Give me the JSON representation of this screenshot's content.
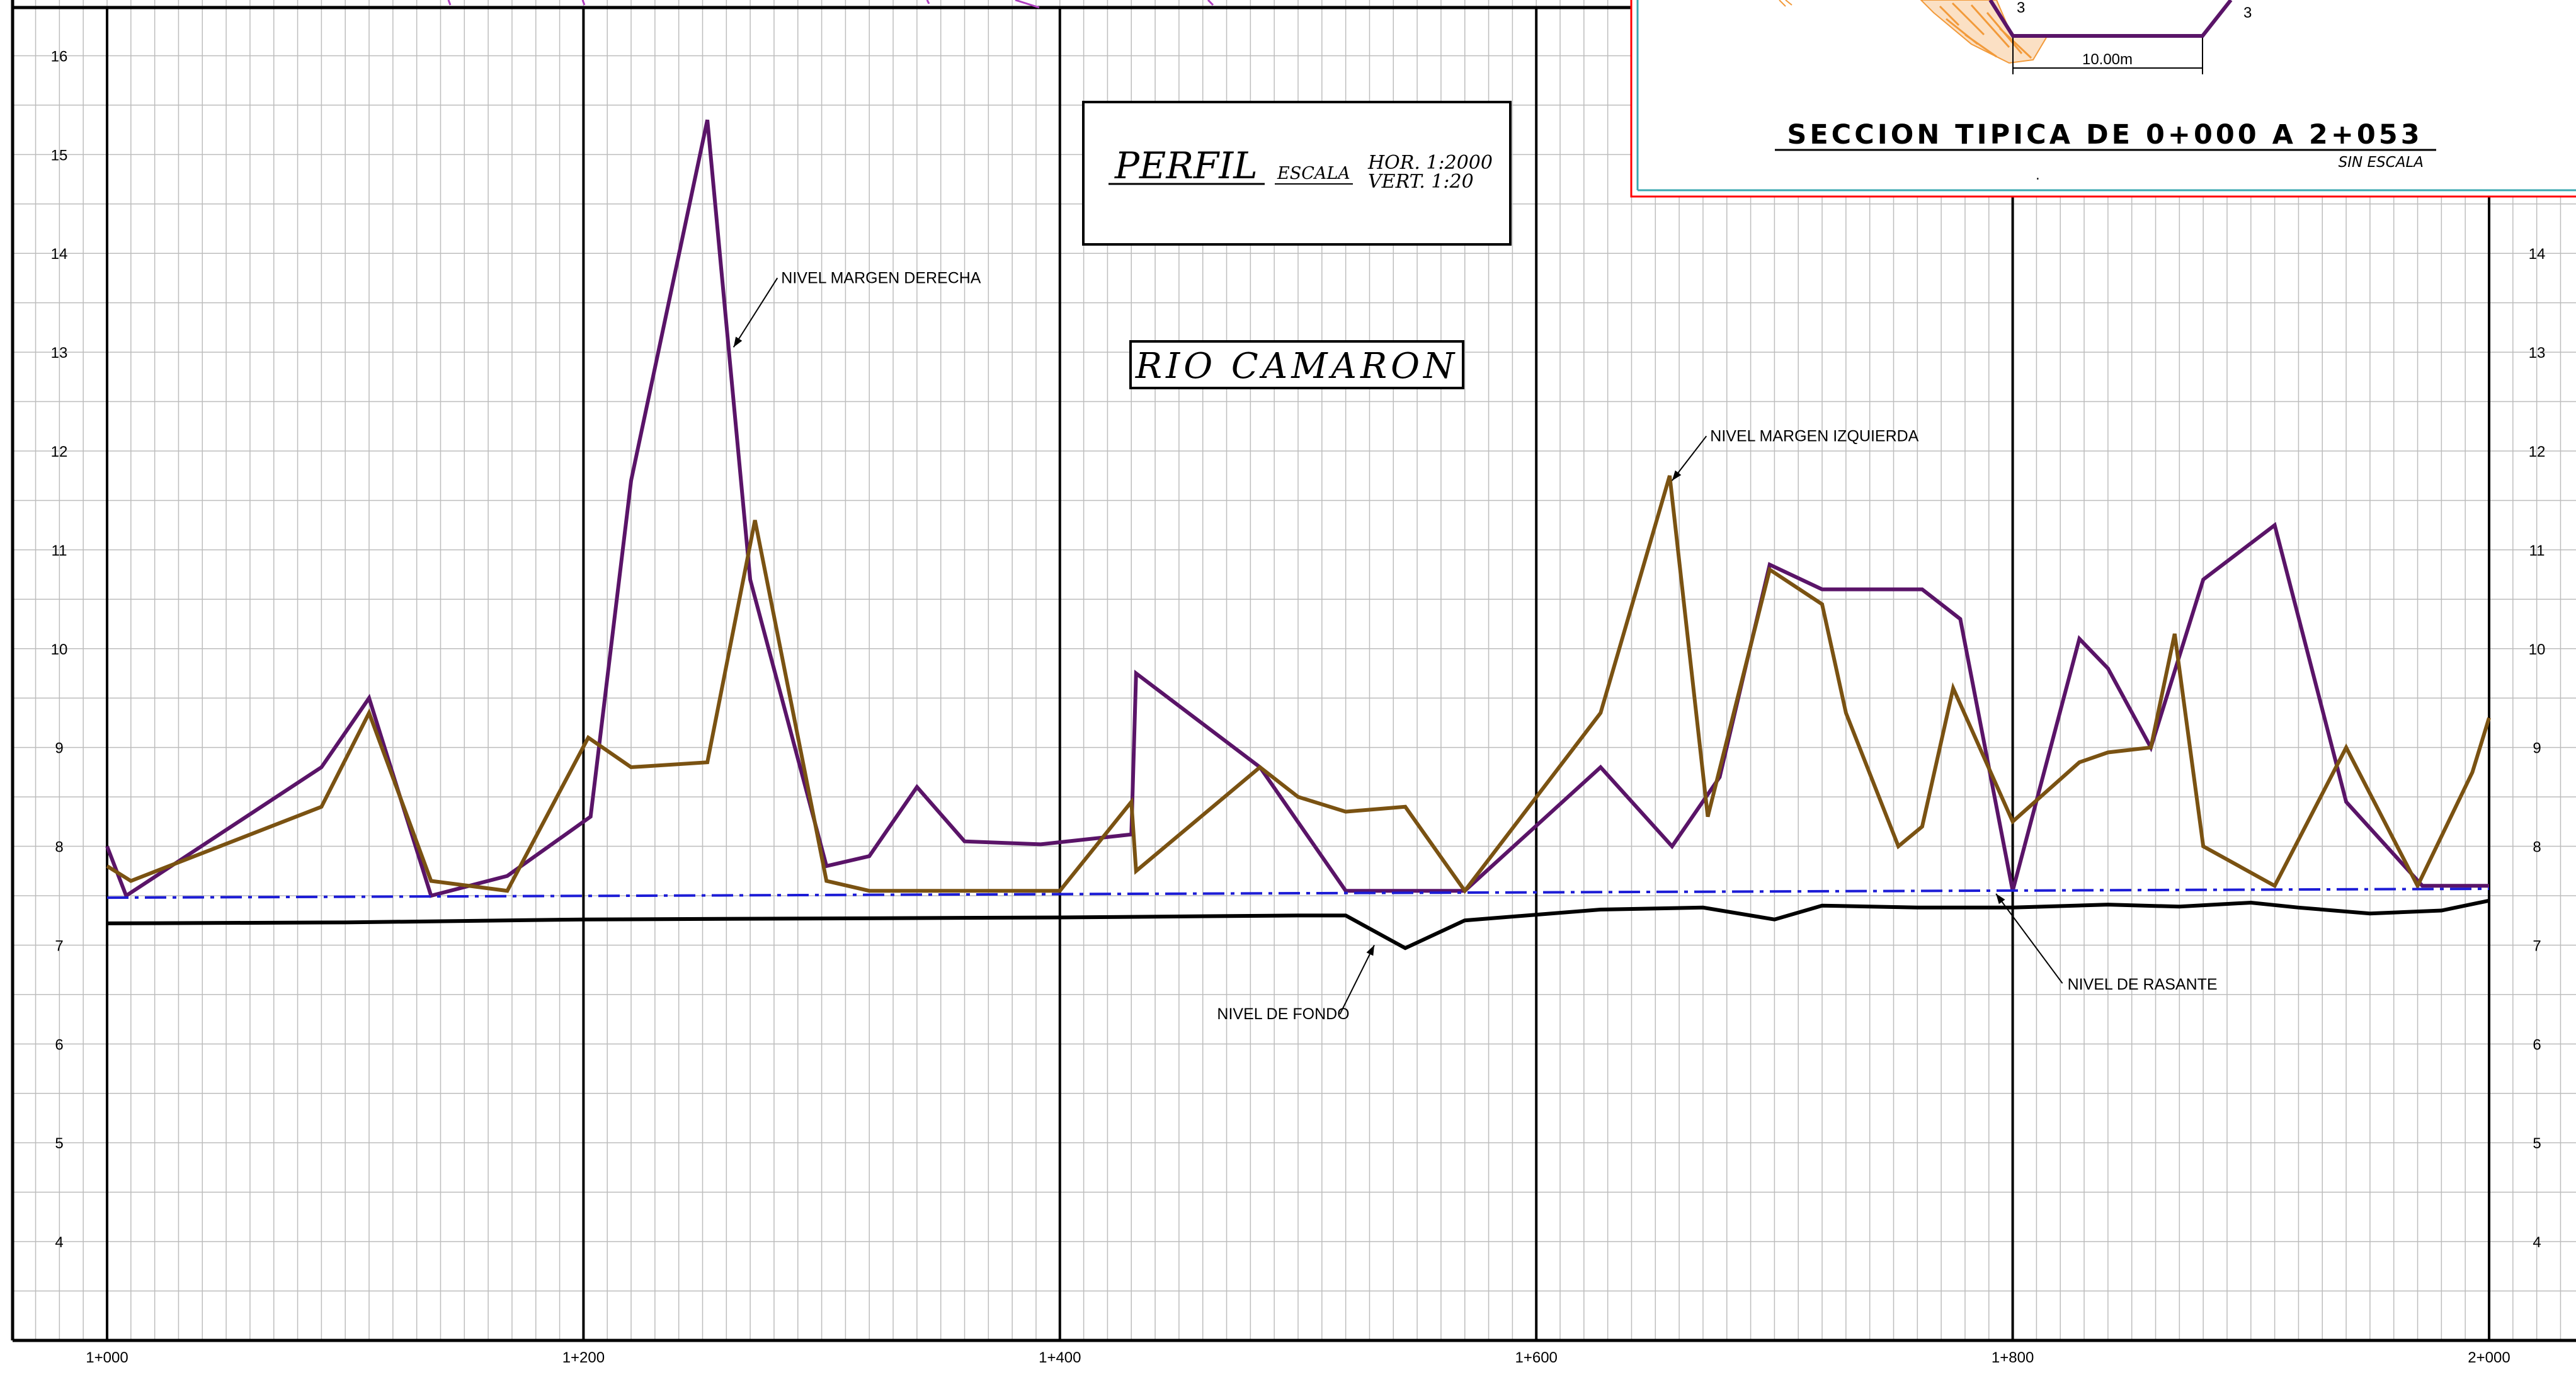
{
  "chart_data": {
    "type": "line",
    "title": "PERFIL",
    "scale": {
      "label": "ESCALA",
      "horizontal": "HOR. 1:2000",
      "vertical": "VERT. 1:20"
    },
    "river_name": "RIO CAMARON",
    "xlim": [
      1000,
      2000
    ],
    "ylim": [
      3,
      16.5
    ],
    "y_ticks": [
      4,
      5,
      6,
      7,
      8,
      9,
      10,
      11,
      12,
      13,
      14,
      15,
      16
    ],
    "y_ticks_right": [
      4,
      5,
      6,
      7,
      8,
      9,
      10,
      11,
      12,
      13,
      14
    ],
    "x_ticks": [
      {
        "value": 1000,
        "label": "1+000"
      },
      {
        "value": 1200,
        "label": "1+200"
      },
      {
        "value": 1400,
        "label": "1+400"
      },
      {
        "value": 1600,
        "label": "1+600"
      },
      {
        "value": 1800,
        "label": "1+800"
      },
      {
        "value": 2000,
        "label": "2+000"
      }
    ],
    "grid": true,
    "series": [
      {
        "name": "NIVEL MARGEN DERECHA",
        "color": "#5a1468",
        "style": "solid",
        "x": [
          1000,
          1008,
          1090,
          1110,
          1136,
          1168,
          1203,
          1220,
          1252,
          1270,
          1302,
          1320,
          1340,
          1360,
          1392,
          1430,
          1432,
          1484,
          1520,
          1570,
          1627,
          1657,
          1677,
          1698,
          1720,
          1762,
          1778,
          1800,
          1828,
          1840,
          1858,
          1880,
          1910,
          1940,
          1972,
          2000
        ],
        "y": [
          8.0,
          7.5,
          8.8,
          9.5,
          7.5,
          7.7,
          8.3,
          11.7,
          15.35,
          10.7,
          7.8,
          7.9,
          8.6,
          8.05,
          8.02,
          8.12,
          9.75,
          8.8,
          7.55,
          7.55,
          8.8,
          8.0,
          8.7,
          10.85,
          10.6,
          10.6,
          10.3,
          7.55,
          10.1,
          9.8,
          9.0,
          10.7,
          11.25,
          8.45,
          7.6,
          7.6
        ]
      },
      {
        "name": "NIVEL MARGEN IZQUIERDA",
        "color": "#7a5212",
        "style": "solid",
        "x": [
          1000,
          1010,
          1090,
          1110,
          1136,
          1168,
          1202,
          1220,
          1252,
          1272,
          1302,
          1320,
          1400,
          1430,
          1432,
          1484,
          1500,
          1520,
          1545,
          1570,
          1627,
          1656,
          1672,
          1698,
          1720,
          1730,
          1752,
          1762,
          1775,
          1800,
          1828,
          1840,
          1858,
          1868,
          1880,
          1910,
          1940,
          1970,
          1993,
          2000
        ],
        "y": [
          7.8,
          7.65,
          8.4,
          9.35,
          7.65,
          7.55,
          9.1,
          8.8,
          8.85,
          11.3,
          7.65,
          7.55,
          7.55,
          8.45,
          7.75,
          8.8,
          8.5,
          8.35,
          8.4,
          7.55,
          9.35,
          11.75,
          8.3,
          10.8,
          10.45,
          9.35,
          8.0,
          8.2,
          9.6,
          8.25,
          8.85,
          8.95,
          9.0,
          10.15,
          8.0,
          7.6,
          9.0,
          7.6,
          8.75,
          9.3
        ]
      },
      {
        "name": "NIVEL DE FONDO",
        "color": "#000000",
        "style": "solid",
        "x": [
          1000,
          1100,
          1200,
          1300,
          1400,
          1500,
          1520,
          1545,
          1570,
          1627,
          1670,
          1700,
          1720,
          1760,
          1800,
          1840,
          1870,
          1900,
          1920,
          1950,
          1980,
          2000
        ],
        "y": [
          7.22,
          7.23,
          7.26,
          7.27,
          7.28,
          7.3,
          7.3,
          6.97,
          7.25,
          7.36,
          7.38,
          7.26,
          7.4,
          7.38,
          7.38,
          7.41,
          7.39,
          7.43,
          7.38,
          7.32,
          7.35,
          7.45
        ]
      },
      {
        "name": "NIVEL DE RASANTE",
        "color": "#1c1cd6",
        "style": "dashdot",
        "x": [
          1000,
          2000
        ],
        "y": [
          7.48,
          7.57
        ]
      }
    ],
    "annotations": [
      {
        "text": "NIVEL MARGEN DERECHA",
        "x": 1283,
        "y": 13.7,
        "target_x": 1263,
        "target_y": 13.05
      },
      {
        "text": "NIVEL MARGEN IZQUIERDA",
        "x": 1673,
        "y": 12.1,
        "target_x": 1657,
        "target_y": 11.7
      },
      {
        "text": "NIVEL DE FONDO",
        "x": 1466,
        "y": 6.25,
        "target_x": 1532,
        "target_y": 7.0
      },
      {
        "text": "NIVEL DE RASANTE",
        "x": 1823,
        "y": 6.55,
        "target_x": 1793,
        "target_y": 7.52
      }
    ]
  },
  "typical_section": {
    "title": "SECCION TIPICA DE 0+000 A 2+053",
    "subtitle": "SIN ESCALA",
    "width_label": "10.00m",
    "slope_left": "3",
    "slope_right": "3",
    "bottom_dot": ".",
    "border_color": "#ff0000",
    "channel_color": "#5a1468",
    "fill_color": "#f29a3a"
  }
}
